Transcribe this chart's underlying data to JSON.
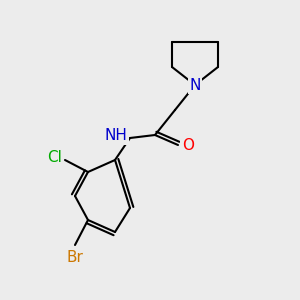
{
  "bg_color": "#ececec",
  "bond_color": "#000000",
  "bond_lw": 1.5,
  "atom_colors": {
    "N": "#0000cc",
    "O": "#ff0000",
    "Cl": "#00aa00",
    "Br": "#cc7700",
    "C": "#000000"
  },
  "font_size": 11,
  "font_size_small": 9
}
